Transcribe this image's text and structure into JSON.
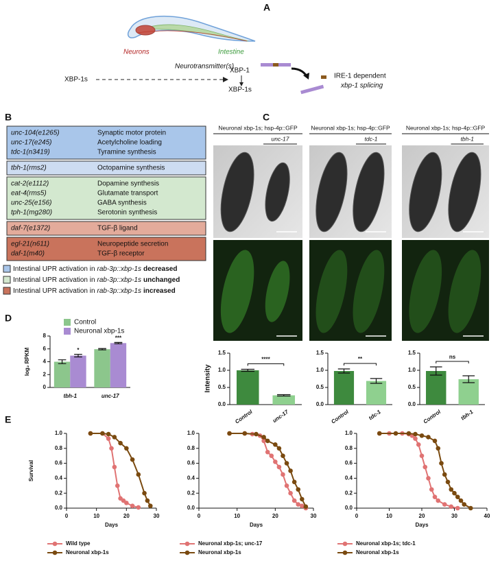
{
  "panel_a": {
    "letter": "A",
    "neurons": "Neurons",
    "intestine": "Intestine",
    "neurotransmitter": "Neurotransmitter(s)",
    "xbp1s_left": "XBP-1s",
    "xbp1": "XBP-1",
    "xbp1s_right": "XBP-1s",
    "ire1": "IRE-1 dependent",
    "splicing": "xbp-1 splicing"
  },
  "panel_b": {
    "letter": "B",
    "groups": [
      {
        "color": "#a9c6ea",
        "rows": [
          [
            "unc-104(e1265)",
            "Synaptic motor protein"
          ],
          [
            "unc-17(e245)",
            "Acetylcholine loading"
          ],
          [
            "tdc-1(n3419)",
            "Tyramine synthesis"
          ]
        ]
      },
      {
        "color": "#cddcf1",
        "rows": [
          [
            "tbh-1(rms2)",
            "Octopamine synthesis"
          ]
        ]
      },
      {
        "color": "#d3e8cf",
        "rows": [
          [
            "cat-2(e1112)",
            "Dopamine synthesis"
          ],
          [
            "eat-4(rms5)",
            "Glutamate transport"
          ],
          [
            "unc-25(e156)",
            "GABA synthesis"
          ],
          [
            "tph-1(mg280)",
            "Serotonin synthesis"
          ]
        ]
      },
      {
        "color": "#e3ab9b",
        "rows": [
          [
            "daf-7(e1372)",
            "TGF-β ligand"
          ]
        ]
      },
      {
        "color": "#c9735c",
        "rows": [
          [
            "egl-21(n611)",
            "Neuropeptide secretion"
          ],
          [
            "daf-1(m40)",
            "TGF-β receptor"
          ]
        ]
      }
    ],
    "legend": [
      {
        "color": "#a9c6ea",
        "text": "Intestinal UPR activation in",
        "strain": "rab-3p::xbp-1s",
        "effect": "decreased"
      },
      {
        "color": "#d3e8cf",
        "text": "Intestinal UPR activation in",
        "strain": "rab-3p::xbp-1s",
        "effect": "unchanged"
      },
      {
        "color": "#c9735c",
        "text": "Intestinal UPR activation in",
        "strain": "rab-3p::xbp-1s",
        "effect": "increased"
      }
    ]
  },
  "panel_c": {
    "letter": "C",
    "columns": [
      {
        "header": "Neuronal xbp-1s; hsp-4p::GFP",
        "mutant": "unc-17"
      },
      {
        "header": "Neuronal xbp-1s; hsp-4p::GFP",
        "mutant": "tdc-1"
      },
      {
        "header": "Neuronal xbp-1s; hsp-4p::GFP",
        "mutant": "tbh-1"
      }
    ]
  },
  "chart_data": [
    {
      "type": "bar",
      "panel_letter": "D",
      "ylabel": "log₂ RPKM",
      "categories": [
        "tbh-1",
        "unc-17"
      ],
      "series": [
        {
          "name": "Control",
          "color": "#8cc68c",
          "values": [
            4.0,
            5.95
          ],
          "errors": [
            0.3,
            0.1
          ]
        },
        {
          "name": "Neuronal xbp-1s",
          "color": "#a98bd2",
          "values": [
            4.95,
            6.9
          ],
          "errors": [
            0.2,
            0.1
          ]
        }
      ],
      "annotations": [
        "*",
        "***"
      ],
      "ylim": [
        0,
        8
      ],
      "yticks": [
        0,
        2,
        4,
        6,
        8
      ]
    },
    {
      "type": "bar",
      "ylabel": "Intensity",
      "categories": [
        "Control",
        "unc-17"
      ],
      "values": [
        1.0,
        0.27
      ],
      "errors": [
        0.03,
        0.02
      ],
      "colors": [
        "#3e8a3e",
        "#8fd08f"
      ],
      "annotation": "****",
      "ylim": [
        0,
        1.5
      ],
      "yticks": [
        {
          "value": 0,
          "label": "0.0"
        },
        0.5,
        {
          "value": 1,
          "label": "1.0"
        },
        1.5
      ]
    },
    {
      "type": "bar",
      "categories": [
        "Control",
        "tdc-1"
      ],
      "values": [
        0.98,
        0.69
      ],
      "errors": [
        0.06,
        0.07
      ],
      "colors": [
        "#3e8a3e",
        "#8fd08f"
      ],
      "annotation": "**",
      "ylim": [
        0,
        1.5
      ],
      "yticks": [
        {
          "value": 0,
          "label": "0.0"
        },
        0.5,
        {
          "value": 1,
          "label": "1.0"
        },
        1.5
      ]
    },
    {
      "type": "bar",
      "categories": [
        "Control",
        "tbh-1"
      ],
      "values": [
        0.98,
        0.74
      ],
      "errors": [
        0.12,
        0.1
      ],
      "colors": [
        "#3e8a3e",
        "#8fd08f"
      ],
      "annotation": "ns",
      "ylim": [
        0,
        1.5
      ],
      "yticks": [
        {
          "value": 0,
          "label": "0.0"
        },
        0.5,
        {
          "value": 1,
          "label": "1.0"
        },
        1.5
      ]
    },
    {
      "type": "line",
      "panel_letter": "E",
      "ylabel": "Survival",
      "xlabel": "Days",
      "xlim": [
        0,
        30
      ],
      "xticks": [
        0,
        10,
        20,
        30
      ],
      "ylim": [
        0,
        1
      ],
      "yticks": [
        {
          "value": 0,
          "label": "0.0"
        },
        0.2,
        0.4,
        0.6,
        0.8,
        {
          "value": 1,
          "label": "1.0"
        }
      ],
      "series": [
        {
          "name": "Wild type",
          "color": "#e07373",
          "x": [
            8,
            12,
            14,
            15,
            16,
            17,
            18,
            19,
            20,
            22,
            24
          ],
          "values": [
            1.0,
            1.0,
            0.93,
            0.8,
            0.55,
            0.3,
            0.13,
            0.1,
            0.07,
            0.03,
            0.01
          ]
        },
        {
          "name": "Neuronal xbp-1s",
          "color": "#7a4a10",
          "x": [
            8,
            12,
            14,
            16,
            18,
            20,
            22,
            24,
            26,
            27,
            28
          ],
          "values": [
            1.0,
            1.0,
            0.99,
            0.95,
            0.87,
            0.8,
            0.65,
            0.45,
            0.2,
            0.1,
            0.03
          ]
        }
      ]
    },
    {
      "type": "line",
      "xlabel": "Days",
      "xlim": [
        0,
        30
      ],
      "xticks": [
        0,
        10,
        20,
        30
      ],
      "ylim": [
        0,
        1
      ],
      "yticks": [
        {
          "value": 0,
          "label": "0.0"
        },
        0.2,
        0.4,
        0.6,
        0.8,
        {
          "value": 1,
          "label": "1.0"
        }
      ],
      "series": [
        {
          "name": "Neuronal xbp-1s; unc-17",
          "color": "#e07373",
          "x": [
            8,
            12,
            14,
            16,
            17,
            18,
            19,
            20,
            21,
            22,
            23,
            24,
            25,
            26,
            27,
            28
          ],
          "values": [
            1.0,
            1.0,
            0.99,
            0.97,
            0.9,
            0.75,
            0.7,
            0.62,
            0.55,
            0.45,
            0.3,
            0.2,
            0.1,
            0.05,
            0.03,
            0.0
          ]
        },
        {
          "name": "Neuronal xbp-1s",
          "color": "#7a4a10",
          "x": [
            8,
            12,
            15,
            17,
            18,
            20,
            21,
            22,
            23,
            24,
            25,
            26,
            27,
            28
          ],
          "values": [
            1.0,
            1.0,
            0.99,
            0.95,
            0.9,
            0.85,
            0.8,
            0.7,
            0.6,
            0.5,
            0.35,
            0.25,
            0.12,
            0.02
          ]
        }
      ]
    },
    {
      "type": "line",
      "xlabel": "Days",
      "xlim": [
        0,
        40
      ],
      "xticks": [
        0,
        10,
        20,
        30,
        40
      ],
      "ylim": [
        0,
        1
      ],
      "yticks": [
        {
          "value": 0,
          "label": "0.0"
        },
        0.2,
        0.4,
        0.6,
        0.8,
        {
          "value": 1,
          "label": "1.0"
        }
      ],
      "series": [
        {
          "name": "Neuronal xbp-1s; tdc-1",
          "color": "#e07373",
          "x": [
            7,
            10,
            14,
            16,
            17,
            18,
            19,
            20,
            21,
            22,
            23,
            24,
            25,
            27,
            29,
            31
          ],
          "values": [
            1.0,
            1.0,
            1.0,
            0.99,
            0.97,
            0.93,
            0.85,
            0.7,
            0.55,
            0.4,
            0.25,
            0.15,
            0.1,
            0.05,
            0.02,
            0.0
          ]
        },
        {
          "name": "Neuronal xbp-1s",
          "color": "#7a4a10",
          "x": [
            7,
            12,
            16,
            18,
            20,
            22,
            24,
            25,
            26,
            27,
            28,
            29,
            30,
            31,
            32,
            33,
            35
          ],
          "values": [
            1.0,
            1.0,
            1.0,
            0.99,
            0.97,
            0.95,
            0.9,
            0.8,
            0.6,
            0.45,
            0.35,
            0.25,
            0.2,
            0.15,
            0.1,
            0.05,
            0.0
          ]
        }
      ]
    }
  ]
}
